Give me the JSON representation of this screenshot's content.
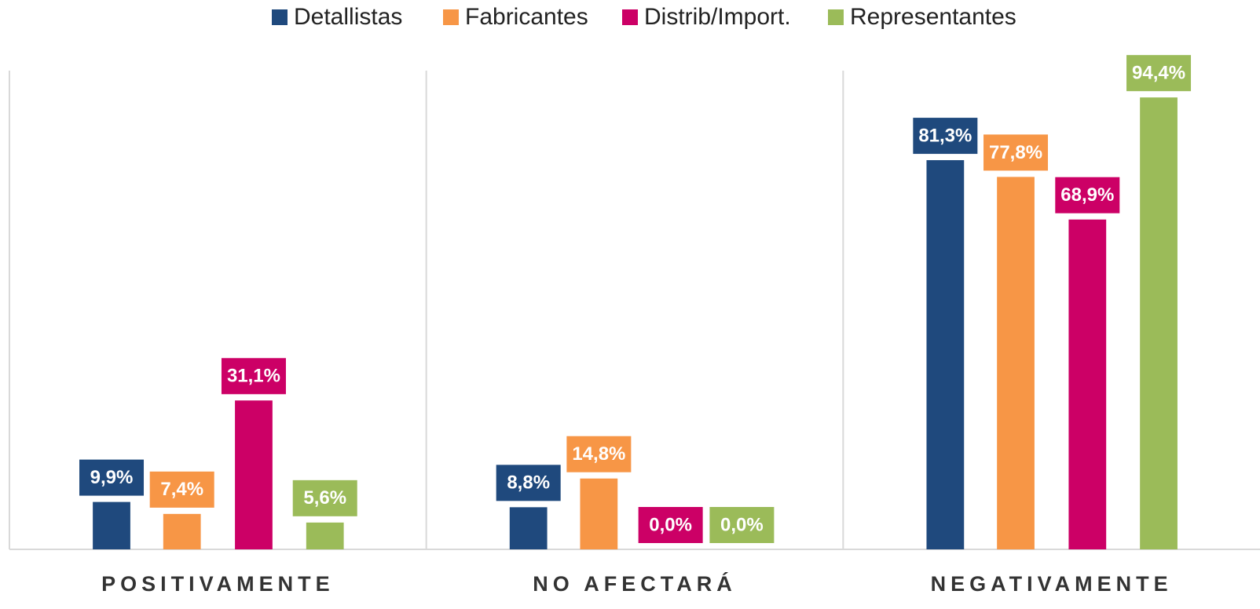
{
  "chart_data": {
    "type": "bar",
    "categories": [
      "POSITIVAMENTE",
      "NO AFECTARÁ",
      "NEGATIVAMENTE"
    ],
    "series": [
      {
        "name": "Detallistas",
        "color": "#1f497d",
        "values": [
          9.9,
          8.8,
          81.3
        ],
        "value_labels": [
          "9,9%",
          "8,8%",
          "81,3%"
        ]
      },
      {
        "name": "Fabricantes",
        "color": "#f79646",
        "values": [
          7.4,
          14.8,
          77.8
        ],
        "value_labels": [
          "7,4%",
          "14,8%",
          "77,8%"
        ]
      },
      {
        "name": "Distrib/Import.",
        "color": "#cc0066",
        "values": [
          31.1,
          0.0,
          68.9
        ],
        "value_labels": [
          "31,1%",
          "0,0%",
          "68,9%"
        ]
      },
      {
        "name": "Representantes",
        "color": "#9bbb59",
        "values": [
          5.6,
          0.0,
          94.4
        ],
        "value_labels": [
          "5,6%",
          "0,0%",
          "94,4%"
        ]
      }
    ],
    "ylim": [
      0,
      100
    ],
    "legend": "top"
  }
}
